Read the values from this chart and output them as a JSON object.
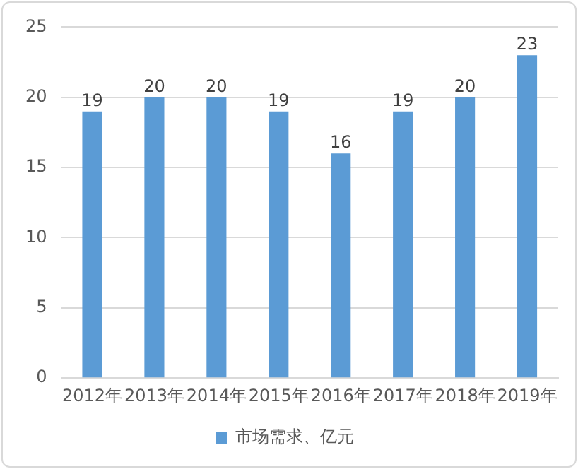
{
  "chart_data": {
    "type": "bar",
    "categories": [
      "2012年",
      "2013年",
      "2014年",
      "2015年",
      "2016年",
      "2017年",
      "2018年",
      "2019年"
    ],
    "series": [
      {
        "name": "市场需求、亿元",
        "color": "#5b9bd5",
        "values": [
          19,
          20,
          20,
          19,
          16,
          19,
          20,
          23
        ]
      }
    ],
    "ylim": [
      0,
      25
    ],
    "yticks": [
      0,
      5,
      10,
      15,
      20,
      25
    ],
    "grid": "y",
    "legend": "bottom",
    "data_labels": true
  }
}
